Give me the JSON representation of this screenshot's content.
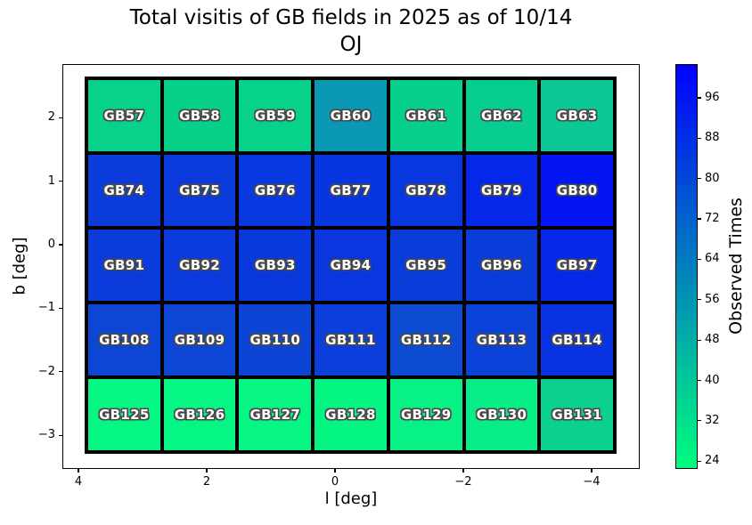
{
  "chart_data": {
    "type": "heatmap",
    "title_line1": "Total visitis of GB fields in 2025 as of 10/14",
    "title_line2": "OJ",
    "xlabel": "l [deg]",
    "ylabel": "b [deg]",
    "colormap": "winter_r",
    "x_axis_reversed": true,
    "x_ticks": [
      {
        "label": "4",
        "value": 4
      },
      {
        "label": "2",
        "value": 2
      },
      {
        "label": "0",
        "value": 0
      },
      {
        "label": "−2",
        "value": -2
      },
      {
        "label": "−4",
        "value": -4
      }
    ],
    "y_ticks": [
      {
        "label": "2",
        "value": 2
      },
      {
        "label": "1",
        "value": 1
      },
      {
        "label": "0",
        "value": 0
      },
      {
        "label": "−1",
        "value": -1
      },
      {
        "label": "−2",
        "value": -2
      },
      {
        "label": "−3",
        "value": -3
      }
    ],
    "colorbar": {
      "label": "Observed Times",
      "ticks": [
        {
          "label": "96",
          "value": 96
        },
        {
          "label": "88",
          "value": 88
        },
        {
          "label": "80",
          "value": 80
        },
        {
          "label": "72",
          "value": 72
        },
        {
          "label": "64",
          "value": 64
        },
        {
          "label": "56",
          "value": 56
        },
        {
          "label": "48",
          "value": 48
        },
        {
          "label": "40",
          "value": 40
        },
        {
          "label": "32",
          "value": 32
        },
        {
          "label": "24",
          "value": 24
        }
      ],
      "range_approx": [
        22,
        103
      ],
      "top_color": "#0101fd",
      "bottom_color": "#00fe7e"
    },
    "grid": {
      "columns": 7,
      "rows": 5
    },
    "rows": [
      {
        "cells": [
          {
            "label": "GB57",
            "color": "#08d289",
            "approx_value": 36
          },
          {
            "label": "GB58",
            "color": "#07d189",
            "approx_value": 36
          },
          {
            "label": "GB59",
            "color": "#07d28a",
            "approx_value": 36
          },
          {
            "label": "GB60",
            "color": "#0b98b2",
            "approx_value": 55
          },
          {
            "label": "GB61",
            "color": "#09cf8d",
            "approx_value": 37
          },
          {
            "label": "GB62",
            "color": "#07ce90",
            "approx_value": 38
          },
          {
            "label": "GB63",
            "color": "#0ac996",
            "approx_value": 39
          }
        ]
      },
      {
        "cells": [
          {
            "label": "GB74",
            "color": "#0b3bdb",
            "approx_value": 84
          },
          {
            "label": "GB75",
            "color": "#0a3adc",
            "approx_value": 85
          },
          {
            "label": "GB76",
            "color": "#0838df",
            "approx_value": 85
          },
          {
            "label": "GB77",
            "color": "#0735e0",
            "approx_value": 86
          },
          {
            "label": "GB78",
            "color": "#0837e0",
            "approx_value": 86
          },
          {
            "label": "GB79",
            "color": "#0527e9",
            "approx_value": 91
          },
          {
            "label": "GB80",
            "color": "#0315f2",
            "approx_value": 96
          }
        ]
      },
      {
        "cells": [
          {
            "label": "GB91",
            "color": "#0b3bdb",
            "approx_value": 84
          },
          {
            "label": "GB92",
            "color": "#0a3adc",
            "approx_value": 85
          },
          {
            "label": "GB93",
            "color": "#0939dd",
            "approx_value": 85
          },
          {
            "label": "GB94",
            "color": "#0936de",
            "approx_value": 86
          },
          {
            "label": "GB95",
            "color": "#0a3cda",
            "approx_value": 84
          },
          {
            "label": "GB96",
            "color": "#0a3cdb",
            "approx_value": 84
          },
          {
            "label": "GB97",
            "color": "#0628e9",
            "approx_value": 91
          }
        ]
      },
      {
        "cells": [
          {
            "label": "GB108",
            "color": "#0d45d5",
            "approx_value": 81
          },
          {
            "label": "GB109",
            "color": "#0d45d5",
            "approx_value": 81
          },
          {
            "label": "GB110",
            "color": "#0c44d6",
            "approx_value": 81
          },
          {
            "label": "GB111",
            "color": "#0b3eda",
            "approx_value": 83
          },
          {
            "label": "GB112",
            "color": "#0d4cd2",
            "approx_value": 79
          },
          {
            "label": "GB113",
            "color": "#0a42da",
            "approx_value": 82
          },
          {
            "label": "GB114",
            "color": "#0932e2",
            "approx_value": 87
          }
        ]
      },
      {
        "cells": [
          {
            "label": "GB125",
            "color": "#06f684",
            "approx_value": 25
          },
          {
            "label": "GB126",
            "color": "#06f684",
            "approx_value": 25
          },
          {
            "label": "GB127",
            "color": "#06f583",
            "approx_value": 25
          },
          {
            "label": "GB128",
            "color": "#05f583",
            "approx_value": 25
          },
          {
            "label": "GB129",
            "color": "#07f185",
            "approx_value": 26
          },
          {
            "label": "GB130",
            "color": "#08ee86",
            "approx_value": 27
          },
          {
            "label": "GB131",
            "color": "#0bd090",
            "approx_value": 37
          }
        ]
      }
    ]
  }
}
